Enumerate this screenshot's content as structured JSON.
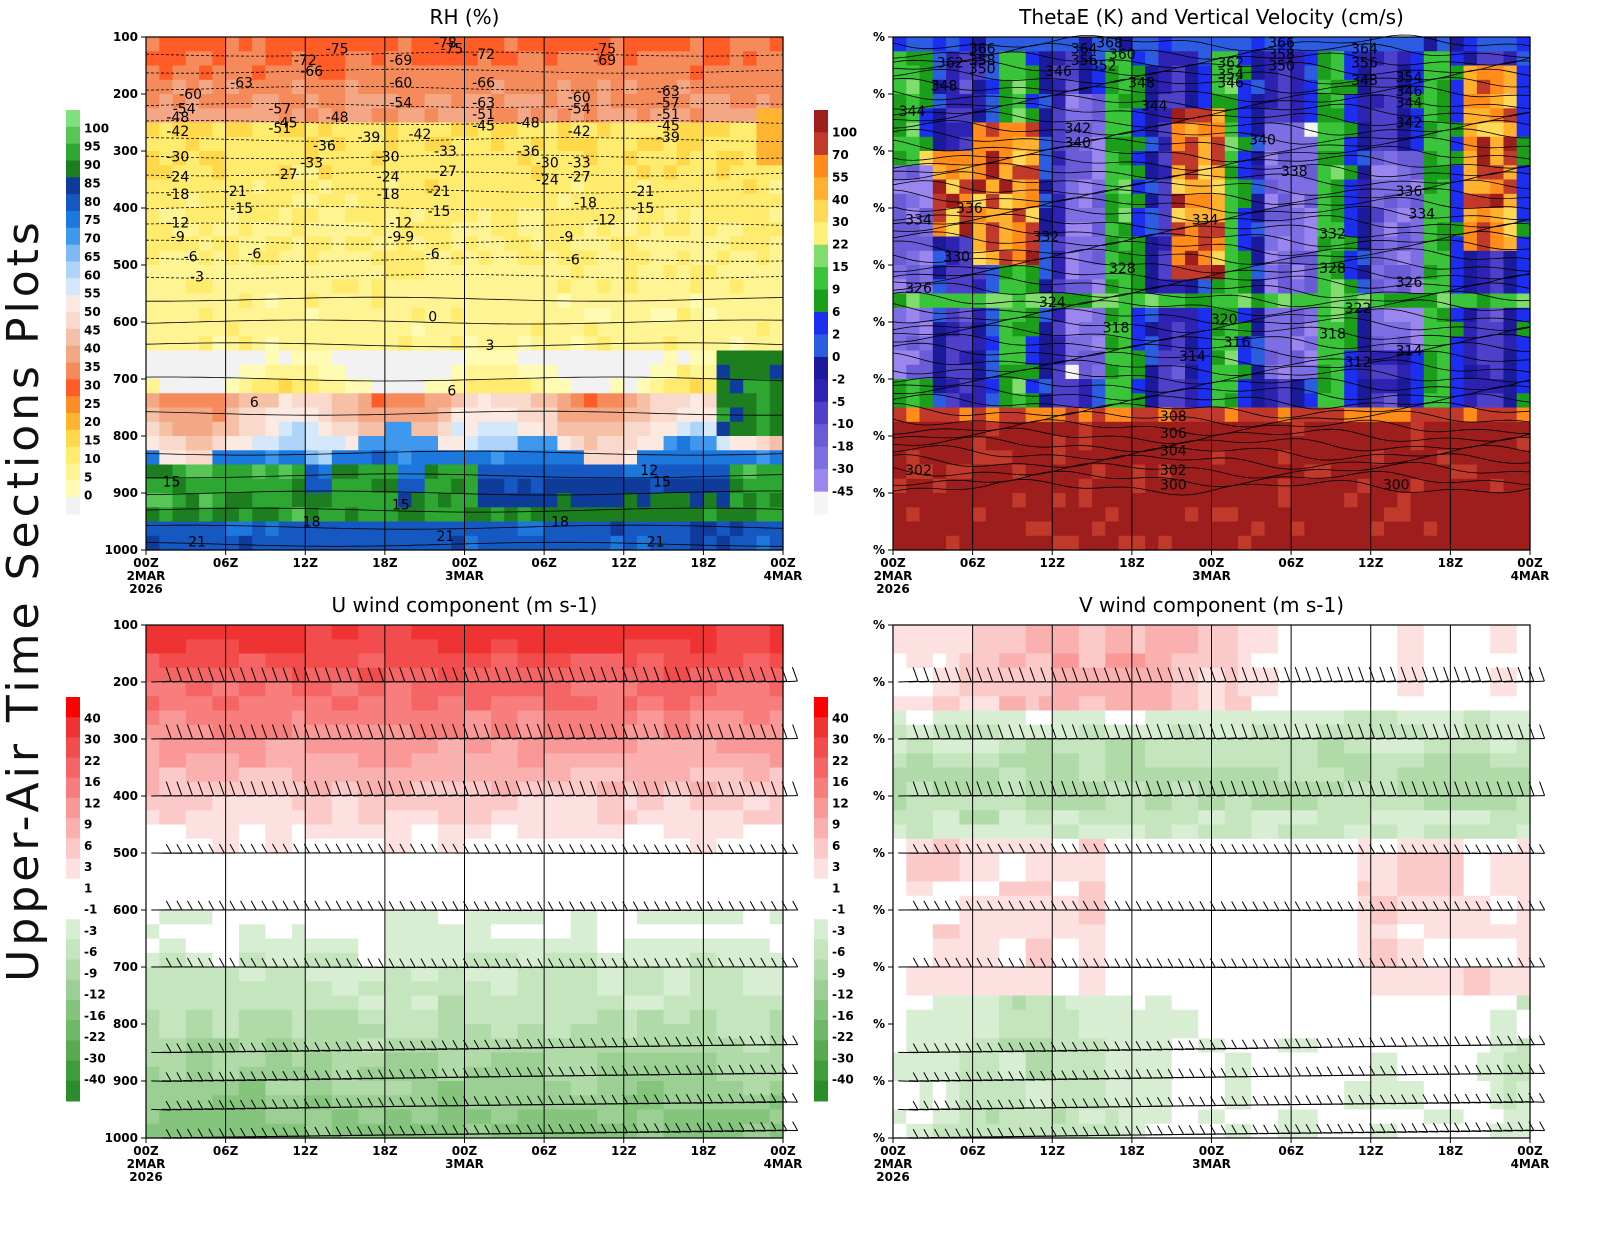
{
  "page_title": "Upper-Air Time Sections Plots",
  "colors": {
    "rh_levels": [
      "#f2f2f2",
      "#fffbb3",
      "#fff493",
      "#ffec6f",
      "#ffd94a",
      "#ffb431",
      "#ff8c27",
      "#ff5c27",
      "#f58b5a",
      "#f3a785",
      "#f6c0a6",
      "#f8d9cb",
      "#fbe9e2",
      "#d5e8fb",
      "#aed4fa",
      "#7cb9f5",
      "#3f98ed",
      "#1d78dd",
      "#1558c2",
      "#0f3b9b",
      "#1c7e1f",
      "#2ea632",
      "#57c657",
      "#7fe07f"
    ],
    "theta_levels": [
      "#f5f5f5",
      "#9b85ef",
      "#7d6ee3",
      "#6a5cd6",
      "#4e40c9",
      "#2e22b3",
      "#1b1a9b",
      "#2c5de0",
      "#1c2ef0",
      "#1b9f1b",
      "#39c439",
      "#7fdc6d",
      "#fff07a",
      "#ffd955",
      "#ffb02e",
      "#ff8c1a",
      "#c0392b",
      "#9e1e1e"
    ],
    "wind_levels": [
      "#2a8c2a",
      "#3f9c3a",
      "#57aa50",
      "#6eb866",
      "#85c47d",
      "#9bcf93",
      "#b0dba9",
      "#c5e5bf",
      "#d8eed3",
      "#ffffff",
      "#ffffff",
      "#fde1e1",
      "#fcc9c9",
      "#fbb0b0",
      "#fa9797",
      "#f87e7e",
      "#f56565",
      "#f24c4c",
      "#ef3333",
      "#ff0000"
    ]
  },
  "chart_data": [
    {
      "id": "rh",
      "type": "heatmap",
      "title": "RH (%)",
      "xlabel": "",
      "ylabel": "",
      "y_axis": {
        "ticks": [
          "100",
          "200",
          "300",
          "400",
          "500",
          "600",
          "700",
          "800",
          "900",
          "1000"
        ]
      },
      "x_axis": {
        "ticks": [
          "00Z",
          "06Z",
          "12Z",
          "18Z",
          "00Z",
          "06Z",
          "12Z",
          "18Z",
          "00Z"
        ],
        "date_labels": [
          "2MAR",
          "3MAR",
          "4MAR"
        ],
        "year_label": "2026"
      },
      "colorbar": {
        "labels": [
          "100",
          "95",
          "90",
          "85",
          "80",
          "75",
          "70",
          "65",
          "60",
          "55",
          "50",
          "45",
          "40",
          "35",
          "30",
          "25",
          "20",
          "15",
          "10",
          "5",
          "0"
        ]
      },
      "contour_labels": [
        {
          "t": 0.48,
          "p": 120,
          "text": "-75"
        },
        {
          "t": 0.4,
          "p": 140,
          "text": "-69"
        },
        {
          "t": 0.53,
          "p": 130,
          "text": "-72"
        },
        {
          "t": 0.25,
          "p": 140,
          "text": "-72"
        },
        {
          "t": 0.26,
          "p": 160,
          "text": "-66"
        },
        {
          "t": 0.15,
          "p": 180,
          "text": "-63"
        },
        {
          "t": 0.07,
          "p": 200,
          "text": "-60"
        },
        {
          "t": 0.4,
          "p": 180,
          "text": "-60"
        },
        {
          "t": 0.06,
          "p": 225,
          "text": "-54"
        },
        {
          "t": 0.4,
          "p": 215,
          "text": "-54"
        },
        {
          "t": 0.05,
          "p": 240,
          "text": "-48"
        },
        {
          "t": 0.3,
          "p": 240,
          "text": "-48"
        },
        {
          "t": 0.05,
          "p": 265,
          "text": "-42"
        },
        {
          "t": 0.43,
          "p": 270,
          "text": "-42"
        },
        {
          "t": 0.35,
          "p": 275,
          "text": "-39"
        },
        {
          "t": 0.22,
          "p": 250,
          "text": "-45"
        },
        {
          "t": 0.05,
          "p": 310,
          "text": "-30"
        },
        {
          "t": 0.38,
          "p": 310,
          "text": "-30"
        },
        {
          "t": 0.05,
          "p": 345,
          "text": "-24"
        },
        {
          "t": 0.38,
          "p": 345,
          "text": "-24"
        },
        {
          "t": 0.05,
          "p": 375,
          "text": "-18"
        },
        {
          "t": 0.38,
          "p": 375,
          "text": "-18"
        },
        {
          "t": 0.05,
          "p": 425,
          "text": "-12"
        },
        {
          "t": 0.4,
          "p": 425,
          "text": "-12"
        },
        {
          "t": 0.05,
          "p": 450,
          "text": "-9"
        },
        {
          "t": 0.39,
          "p": 450,
          "text": "-9"
        },
        {
          "t": 0.07,
          "p": 485,
          "text": "-6"
        },
        {
          "t": 0.45,
          "p": 480,
          "text": "-6"
        },
        {
          "t": 0.08,
          "p": 520,
          "text": "-3"
        },
        {
          "t": 0.45,
          "p": 590,
          "text": "0"
        },
        {
          "t": 0.54,
          "p": 640,
          "text": "3"
        },
        {
          "t": 0.17,
          "p": 740,
          "text": "6"
        },
        {
          "t": 0.48,
          "p": 720,
          "text": "6"
        },
        {
          "t": 0.04,
          "p": 880,
          "text": "15"
        },
        {
          "t": 0.81,
          "p": 880,
          "text": "15"
        },
        {
          "t": 0.4,
          "p": 920,
          "text": "15"
        },
        {
          "t": 0.26,
          "p": 950,
          "text": "18"
        },
        {
          "t": 0.65,
          "p": 950,
          "text": "18"
        },
        {
          "t": 0.08,
          "p": 985,
          "text": "21"
        },
        {
          "t": 0.47,
          "p": 975,
          "text": "21"
        },
        {
          "t": 0.8,
          "p": 985,
          "text": "21"
        },
        {
          "t": 0.79,
          "p": 860,
          "text": "12"
        },
        {
          "t": 0.53,
          "p": 180,
          "text": "-66"
        },
        {
          "t": 0.53,
          "p": 215,
          "text": "-63"
        },
        {
          "t": 0.68,
          "p": 205,
          "text": "-60"
        },
        {
          "t": 0.68,
          "p": 225,
          "text": "-54"
        },
        {
          "t": 0.82,
          "p": 195,
          "text": "-63"
        },
        {
          "t": 0.82,
          "p": 215,
          "text": "-57"
        },
        {
          "t": 0.82,
          "p": 235,
          "text": "-51"
        },
        {
          "t": 0.82,
          "p": 255,
          "text": "-45"
        },
        {
          "t": 0.82,
          "p": 275,
          "text": "-39"
        },
        {
          "t": 0.68,
          "p": 265,
          "text": "-42"
        },
        {
          "t": 0.68,
          "p": 320,
          "text": "-33"
        },
        {
          "t": 0.68,
          "p": 345,
          "text": "-27"
        },
        {
          "t": 0.78,
          "p": 370,
          "text": "-21"
        },
        {
          "t": 0.78,
          "p": 400,
          "text": "-15"
        },
        {
          "t": 0.72,
          "p": 420,
          "text": "-12"
        },
        {
          "t": 0.66,
          "p": 450,
          "text": "-9"
        },
        {
          "t": 0.67,
          "p": 490,
          "text": "-6"
        },
        {
          "t": 0.6,
          "p": 250,
          "text": "-48"
        },
        {
          "t": 0.6,
          "p": 300,
          "text": "-36"
        },
        {
          "t": 0.63,
          "p": 320,
          "text": "-30"
        },
        {
          "t": 0.63,
          "p": 350,
          "text": "-24"
        },
        {
          "t": 0.69,
          "p": 390,
          "text": "-18"
        },
        {
          "t": 0.26,
          "p": 320,
          "text": "-33"
        },
        {
          "t": 0.22,
          "p": 340,
          "text": "-27"
        },
        {
          "t": 0.14,
          "p": 370,
          "text": "-21"
        },
        {
          "t": 0.15,
          "p": 400,
          "text": "-15"
        },
        {
          "t": 0.17,
          "p": 480,
          "text": "-6"
        },
        {
          "t": 0.28,
          "p": 290,
          "text": "-36"
        },
        {
          "t": 0.21,
          "p": 260,
          "text": "-51"
        },
        {
          "t": 0.21,
          "p": 225,
          "text": "-57"
        },
        {
          "t": 0.3,
          "p": 120,
          "text": "-75"
        },
        {
          "t": 0.47,
          "p": 110,
          "text": "-78"
        },
        {
          "t": 0.72,
          "p": 120,
          "text": "-75"
        },
        {
          "t": 0.72,
          "p": 140,
          "text": "-69"
        },
        {
          "t": 0.53,
          "p": 255,
          "text": "-45"
        },
        {
          "t": 0.53,
          "p": 235,
          "text": "-51"
        },
        {
          "t": 0.47,
          "p": 300,
          "text": "-33"
        },
        {
          "t": 0.47,
          "p": 335,
          "text": "-27"
        },
        {
          "t": 0.46,
          "p": 370,
          "text": "-21"
        },
        {
          "t": 0.46,
          "p": 405,
          "text": "-15"
        },
        {
          "t": 0.41,
          "p": 450,
          "text": "-9"
        }
      ]
    },
    {
      "id": "theta",
      "type": "heatmap",
      "title": "ThetaE (K) and Vertical Velocity (cm/s)",
      "y_axis": {
        "ticks": [
          "%",
          "%",
          "%",
          "%",
          "%",
          "%",
          "%",
          "%",
          "%",
          "%"
        ]
      },
      "x_axis": {
        "ticks": [
          "00Z",
          "06Z",
          "12Z",
          "18Z",
          "00Z",
          "06Z",
          "12Z",
          "18Z",
          "00Z"
        ],
        "date_labels": [
          "2MAR",
          "3MAR",
          "4MAR"
        ],
        "year_label": "2026"
      },
      "colorbar": {
        "labels": [
          "100",
          "70",
          "55",
          "40",
          "30",
          "22",
          "15",
          "9",
          "6",
          "2",
          "0",
          "-2",
          "-5",
          "-10",
          "-18",
          "-30",
          "-45"
        ]
      },
      "contour_labels": [
        {
          "t": 0.14,
          "p": 120,
          "text": "366"
        },
        {
          "t": 0.3,
          "p": 120,
          "text": "364"
        },
        {
          "t": 0.14,
          "p": 140,
          "text": "358"
        },
        {
          "t": 0.3,
          "p": 140,
          "text": "356"
        },
        {
          "t": 0.14,
          "p": 155,
          "text": "350"
        },
        {
          "t": 0.26,
          "p": 160,
          "text": "346"
        },
        {
          "t": 0.09,
          "p": 145,
          "text": "362"
        },
        {
          "t": 0.08,
          "p": 185,
          "text": "348"
        },
        {
          "t": 0.03,
          "p": 230,
          "text": "344"
        },
        {
          "t": 0.29,
          "p": 260,
          "text": "342"
        },
        {
          "t": 0.29,
          "p": 285,
          "text": "340"
        },
        {
          "t": 0.34,
          "p": 110,
          "text": "368"
        },
        {
          "t": 0.36,
          "p": 130,
          "text": "360"
        },
        {
          "t": 0.33,
          "p": 150,
          "text": "352"
        },
        {
          "t": 0.39,
          "p": 180,
          "text": "348"
        },
        {
          "t": 0.41,
          "p": 220,
          "text": "344"
        },
        {
          "t": 0.53,
          "p": 145,
          "text": "362"
        },
        {
          "t": 0.53,
          "p": 165,
          "text": "354"
        },
        {
          "t": 0.53,
          "p": 180,
          "text": "346"
        },
        {
          "t": 0.58,
          "p": 280,
          "text": "340"
        },
        {
          "t": 0.61,
          "p": 110,
          "text": "366"
        },
        {
          "t": 0.61,
          "p": 130,
          "text": "358"
        },
        {
          "t": 0.61,
          "p": 150,
          "text": "350"
        },
        {
          "t": 0.74,
          "p": 120,
          "text": "364"
        },
        {
          "t": 0.74,
          "p": 145,
          "text": "356"
        },
        {
          "t": 0.74,
          "p": 175,
          "text": "348"
        },
        {
          "t": 0.81,
          "p": 170,
          "text": "354"
        },
        {
          "t": 0.81,
          "p": 195,
          "text": "346"
        },
        {
          "t": 0.81,
          "p": 215,
          "text": "344"
        },
        {
          "t": 0.81,
          "p": 250,
          "text": "342"
        },
        {
          "t": 0.63,
          "p": 335,
          "text": "338"
        },
        {
          "t": 0.81,
          "p": 370,
          "text": "336"
        },
        {
          "t": 0.83,
          "p": 410,
          "text": "334"
        },
        {
          "t": 0.12,
          "p": 400,
          "text": "336"
        },
        {
          "t": 0.04,
          "p": 420,
          "text": "334"
        },
        {
          "t": 0.1,
          "p": 485,
          "text": "330"
        },
        {
          "t": 0.04,
          "p": 540,
          "text": "326"
        },
        {
          "t": 0.24,
          "p": 450,
          "text": "332"
        },
        {
          "t": 0.25,
          "p": 565,
          "text": "324"
        },
        {
          "t": 0.49,
          "p": 420,
          "text": "334"
        },
        {
          "t": 0.36,
          "p": 505,
          "text": "328"
        },
        {
          "t": 0.69,
          "p": 445,
          "text": "332"
        },
        {
          "t": 0.69,
          "p": 505,
          "text": "328"
        },
        {
          "t": 0.81,
          "p": 530,
          "text": "326"
        },
        {
          "t": 0.73,
          "p": 575,
          "text": "322"
        },
        {
          "t": 0.69,
          "p": 620,
          "text": "318"
        },
        {
          "t": 0.35,
          "p": 610,
          "text": "318"
        },
        {
          "t": 0.52,
          "p": 595,
          "text": "320"
        },
        {
          "t": 0.54,
          "p": 635,
          "text": "316"
        },
        {
          "t": 0.47,
          "p": 660,
          "text": "314"
        },
        {
          "t": 0.73,
          "p": 670,
          "text": "312"
        },
        {
          "t": 0.81,
          "p": 650,
          "text": "314"
        },
        {
          "t": 0.44,
          "p": 765,
          "text": "308"
        },
        {
          "t": 0.44,
          "p": 795,
          "text": "306"
        },
        {
          "t": 0.44,
          "p": 825,
          "text": "304"
        },
        {
          "t": 0.44,
          "p": 860,
          "text": "302"
        },
        {
          "t": 0.44,
          "p": 885,
          "text": "300"
        },
        {
          "t": 0.04,
          "p": 860,
          "text": "302"
        },
        {
          "t": 0.79,
          "p": 885,
          "text": "300"
        }
      ]
    },
    {
      "id": "uwind",
      "type": "heatmap",
      "title": "U wind component (m s-1)",
      "y_axis": {
        "ticks": [
          "100",
          "200",
          "300",
          "400",
          "500",
          "600",
          "700",
          "800",
          "900",
          "1000"
        ]
      },
      "x_axis": {
        "ticks": [
          "00Z",
          "06Z",
          "12Z",
          "18Z",
          "00Z",
          "06Z",
          "12Z",
          "18Z",
          "00Z"
        ],
        "date_labels": [
          "2MAR",
          "3MAR",
          "4MAR"
        ],
        "year_label": "2026"
      },
      "colorbar": {
        "labels": [
          "40",
          "30",
          "22",
          "16",
          "12",
          "9",
          "6",
          "3",
          "1",
          "-1",
          "-3",
          "-6",
          "-9",
          "-12",
          "-16",
          "-22",
          "-30",
          "-40"
        ]
      },
      "barb_levels": [
        200,
        300,
        400,
        500,
        600,
        700,
        850,
        900,
        950,
        1000
      ]
    },
    {
      "id": "vwind",
      "type": "heatmap",
      "title": "V wind component (m s-1)",
      "y_axis": {
        "ticks": [
          "%",
          "%",
          "%",
          "%",
          "%",
          "%",
          "%",
          "%",
          "%",
          "%"
        ]
      },
      "x_axis": {
        "ticks": [
          "00Z",
          "06Z",
          "12Z",
          "18Z",
          "00Z",
          "06Z",
          "12Z",
          "18Z",
          "00Z"
        ],
        "date_labels": [
          "2MAR",
          "3MAR",
          "4MAR"
        ],
        "year_label": "2026"
      },
      "colorbar": {
        "labels": [
          "40",
          "30",
          "22",
          "16",
          "12",
          "9",
          "6",
          "3",
          "1",
          "-1",
          "-3",
          "-6",
          "-9",
          "-12",
          "-16",
          "-22",
          "-30",
          "-40"
        ]
      },
      "barb_levels": [
        200,
        300,
        400,
        500,
        600,
        700,
        850,
        900,
        950,
        1000
      ]
    }
  ]
}
